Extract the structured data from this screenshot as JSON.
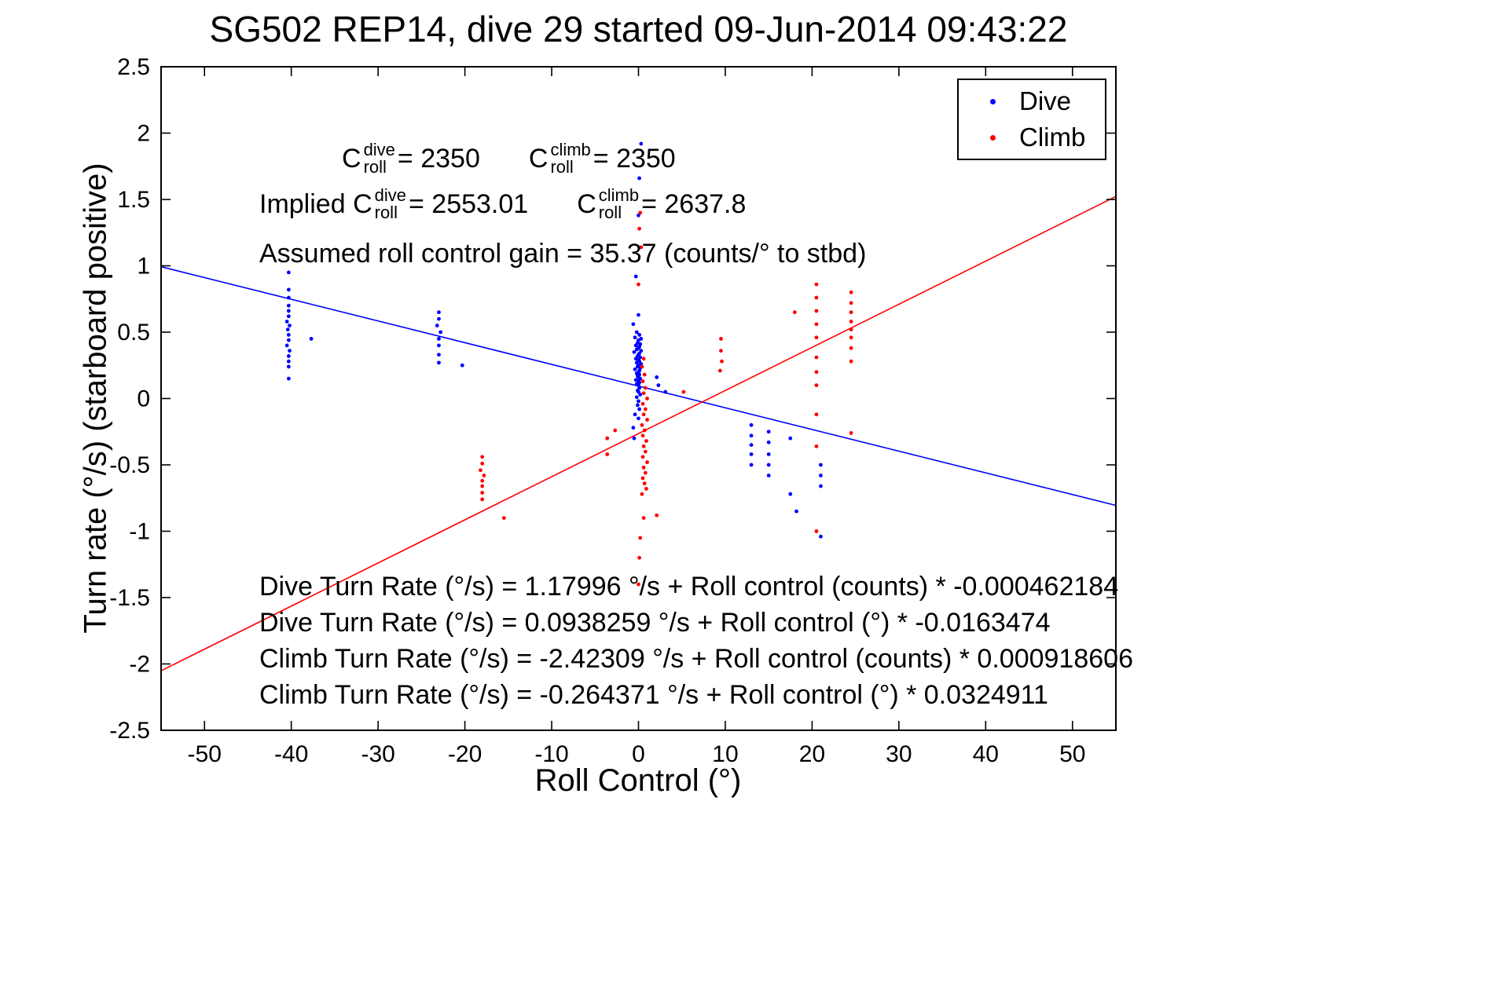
{
  "chart_data": {
    "type": "scatter",
    "title": "SG502 REP14, dive 29 started 09-Jun-2014 09:43:22",
    "xlabel": "Roll Control (°)",
    "ylabel": "Turn rate (°/s) (starboard positive)",
    "xlim": [
      -55,
      55
    ],
    "ylim": [
      -2.5,
      2.5
    ],
    "grid": false,
    "xticks": [
      -50,
      -40,
      -30,
      -20,
      -10,
      0,
      10,
      20,
      30,
      40,
      50
    ],
    "xtick_labels": [
      "-50",
      "-40",
      "-30",
      "-20",
      "-10",
      "0",
      "10",
      "20",
      "30",
      "40",
      "50"
    ],
    "yticks": [
      -2.5,
      -2,
      -1.5,
      -1,
      -0.5,
      0,
      0.5,
      1,
      1.5,
      2,
      2.5
    ],
    "ytick_labels": [
      "-2.5",
      "-2",
      "-1.5",
      "-1",
      "-0.5",
      "0",
      "0.5",
      "1",
      "1.5",
      "2",
      "2.5"
    ],
    "legend": {
      "position": "top-right",
      "entries": [
        {
          "label": "Dive",
          "color": "#0000ff"
        },
        {
          "label": "Climb",
          "color": "#ff0000"
        }
      ]
    },
    "fit_lines": [
      {
        "name": "dive-fit",
        "color": "#0000ff",
        "intercept": 0.0938259,
        "slope": -0.0163474
      },
      {
        "name": "climb-fit",
        "color": "#ff0000",
        "intercept": -0.264371,
        "slope": 0.0324911
      }
    ],
    "series": [
      {
        "name": "Dive",
        "color": "#0000ff",
        "points": [
          [
            -40.3,
            0.95
          ],
          [
            -40.3,
            0.82
          ],
          [
            -40.3,
            0.76
          ],
          [
            -40.3,
            0.7
          ],
          [
            -40.3,
            0.66
          ],
          [
            -40.3,
            0.62
          ],
          [
            -40.5,
            0.58
          ],
          [
            -40.2,
            0.55
          ],
          [
            -40.4,
            0.52
          ],
          [
            -40.3,
            0.48
          ],
          [
            -40.3,
            0.44
          ],
          [
            -40.5,
            0.4
          ],
          [
            -40.2,
            0.36
          ],
          [
            -40.3,
            0.32
          ],
          [
            -40.3,
            0.28
          ],
          [
            -40.3,
            0.24
          ],
          [
            -40.3,
            0.15
          ],
          [
            -37.7,
            0.45
          ],
          [
            -23,
            0.65
          ],
          [
            -23,
            0.6
          ],
          [
            -23.2,
            0.55
          ],
          [
            -22.8,
            0.5
          ],
          [
            -23,
            0.45
          ],
          [
            -23,
            0.4
          ],
          [
            -23,
            0.33
          ],
          [
            -23,
            0.27
          ],
          [
            -20.3,
            0.25
          ],
          [
            0.3,
            1.92
          ],
          [
            0.1,
            1.66
          ],
          [
            0.0,
            1.38
          ],
          [
            -0.3,
            0.92
          ],
          [
            0.0,
            0.63
          ],
          [
            -0.6,
            0.56
          ],
          [
            -0.2,
            0.5
          ],
          [
            0.1,
            0.48
          ],
          [
            -0.4,
            0.46
          ],
          [
            0.3,
            0.45
          ],
          [
            0.0,
            0.44
          ],
          [
            -0.1,
            0.42
          ],
          [
            0.2,
            0.41
          ],
          [
            -0.3,
            0.4
          ],
          [
            0.1,
            0.39
          ],
          [
            0.0,
            0.38
          ],
          [
            -0.2,
            0.37
          ],
          [
            0.3,
            0.36
          ],
          [
            -0.5,
            0.35
          ],
          [
            0.1,
            0.34
          ],
          [
            0.0,
            0.33
          ],
          [
            -0.1,
            0.32
          ],
          [
            0.2,
            0.31
          ],
          [
            -0.3,
            0.3
          ],
          [
            0.0,
            0.29
          ],
          [
            0.1,
            0.28
          ],
          [
            -0.2,
            0.27
          ],
          [
            0.3,
            0.26
          ],
          [
            0.0,
            0.25
          ],
          [
            -0.1,
            0.24
          ],
          [
            0.2,
            0.23
          ],
          [
            -0.4,
            0.22
          ],
          [
            0.1,
            0.21
          ],
          [
            0.0,
            0.2
          ],
          [
            -0.2,
            0.19
          ],
          [
            0.1,
            0.18
          ],
          [
            -0.1,
            0.17
          ],
          [
            0.0,
            0.16
          ],
          [
            0.2,
            0.15
          ],
          [
            -0.3,
            0.14
          ],
          [
            0.0,
            0.13
          ],
          [
            0.1,
            0.12
          ],
          [
            -0.2,
            0.11
          ],
          [
            0.0,
            0.1
          ],
          [
            0.1,
            0.08
          ],
          [
            -0.1,
            0.06
          ],
          [
            0.0,
            0.05
          ],
          [
            0.2,
            0.03
          ],
          [
            -0.2,
            0.01
          ],
          [
            0.0,
            -0.02
          ],
          [
            -0.1,
            -0.05
          ],
          [
            0.1,
            -0.08
          ],
          [
            -0.4,
            -0.12
          ],
          [
            0.0,
            -0.15
          ],
          [
            -0.6,
            -0.22
          ],
          [
            -0.5,
            -0.3
          ],
          [
            2.1,
            0.16
          ],
          [
            2.3,
            0.1
          ],
          [
            3.1,
            0.05
          ],
          [
            13,
            -0.2
          ],
          [
            13,
            -0.28
          ],
          [
            13,
            -0.35
          ],
          [
            13,
            -0.42
          ],
          [
            13,
            -0.5
          ],
          [
            15,
            -0.25
          ],
          [
            15,
            -0.33
          ],
          [
            15,
            -0.42
          ],
          [
            15,
            -0.5
          ],
          [
            15,
            -0.58
          ],
          [
            17.5,
            -0.3
          ],
          [
            17.5,
            -0.72
          ],
          [
            18.2,
            -0.85
          ],
          [
            21,
            -0.5
          ],
          [
            21,
            -0.58
          ],
          [
            21,
            -0.66
          ],
          [
            21,
            -1.04
          ]
        ]
      },
      {
        "name": "Climb",
        "color": "#ff0000",
        "points": [
          [
            -18,
            -0.44
          ],
          [
            -18,
            -0.49
          ],
          [
            -18.2,
            -0.54
          ],
          [
            -17.8,
            -0.58
          ],
          [
            -18,
            -0.62
          ],
          [
            -18,
            -0.66
          ],
          [
            -18,
            -0.71
          ],
          [
            -18,
            -0.76
          ],
          [
            -15.5,
            -0.9
          ],
          [
            -3.6,
            -0.3
          ],
          [
            -3.6,
            -0.42
          ],
          [
            -2.7,
            -0.24
          ],
          [
            0.2,
            1.4
          ],
          [
            0.1,
            1.28
          ],
          [
            0.3,
            1.14
          ],
          [
            0.0,
            0.86
          ],
          [
            0.6,
            0.3
          ],
          [
            0.4,
            0.24
          ],
          [
            0.7,
            0.18
          ],
          [
            0.5,
            0.13
          ],
          [
            0.8,
            0.08
          ],
          [
            0.6,
            0.04
          ],
          [
            1.0,
            0.0
          ],
          [
            0.5,
            -0.04
          ],
          [
            0.8,
            -0.08
          ],
          [
            0.6,
            -0.12
          ],
          [
            1.0,
            -0.16
          ],
          [
            0.4,
            -0.2
          ],
          [
            0.7,
            -0.24
          ],
          [
            0.5,
            -0.28
          ],
          [
            0.9,
            -0.32
          ],
          [
            0.6,
            -0.36
          ],
          [
            0.8,
            -0.4
          ],
          [
            0.5,
            -0.44
          ],
          [
            1.0,
            -0.48
          ],
          [
            0.6,
            -0.52
          ],
          [
            0.8,
            -0.56
          ],
          [
            0.5,
            -0.6
          ],
          [
            0.7,
            -0.64
          ],
          [
            0.9,
            -0.68
          ],
          [
            0.4,
            -0.72
          ],
          [
            0.6,
            -0.9
          ],
          [
            0.2,
            -1.05
          ],
          [
            0.1,
            -1.2
          ],
          [
            0.0,
            -1.4
          ],
          [
            2.1,
            -0.88
          ],
          [
            5.2,
            0.05
          ],
          [
            9.5,
            0.45
          ],
          [
            9.5,
            0.36
          ],
          [
            9.6,
            0.28
          ],
          [
            9.4,
            0.21
          ],
          [
            18,
            0.65
          ],
          [
            20.5,
            0.86
          ],
          [
            20.5,
            0.76
          ],
          [
            20.5,
            0.66
          ],
          [
            20.5,
            0.56
          ],
          [
            20.5,
            0.46
          ],
          [
            20.5,
            0.31
          ],
          [
            20.5,
            0.2
          ],
          [
            20.5,
            0.1
          ],
          [
            20.5,
            -0.12
          ],
          [
            20.5,
            -0.36
          ],
          [
            20.5,
            -1.0
          ],
          [
            24.5,
            0.8
          ],
          [
            24.5,
            0.72
          ],
          [
            24.5,
            0.65
          ],
          [
            24.5,
            0.58
          ],
          [
            24.5,
            0.52
          ],
          [
            24.5,
            0.46
          ],
          [
            24.5,
            0.38
          ],
          [
            24.5,
            0.28
          ],
          [
            24.5,
            -0.26
          ]
        ]
      }
    ]
  },
  "annotations": {
    "line1": {
      "t1": {
        "base": "C",
        "sup": "dive",
        "sub": "roll",
        "rest": " = 2350"
      },
      "t2": {
        "base": "C",
        "sup": "climb",
        "sub": "roll",
        "rest": " = 2350"
      }
    },
    "line2": {
      "prefix": "Implied ",
      "t1": {
        "base": "C",
        "sup": "dive",
        "sub": "roll",
        "rest": " = 2553.01"
      },
      "t2": {
        "base": "C",
        "sup": "climb",
        "sub": "roll",
        "rest": " = 2637.8"
      }
    },
    "line3": "Assumed roll control gain = 35.37 (counts/° to stbd)",
    "equations": [
      "Dive Turn Rate (°/s) = 1.17996 °/s + Roll control (counts) * -0.000462184",
      "Dive Turn Rate (°/s) = 0.0938259 °/s + Roll control (°) * -0.0163474",
      "Climb Turn Rate (°/s) = -2.42309 °/s + Roll control (counts) * 0.000918606",
      "Climb Turn Rate (°/s) = -0.264371 °/s + Roll control (°) * 0.0324911"
    ]
  }
}
